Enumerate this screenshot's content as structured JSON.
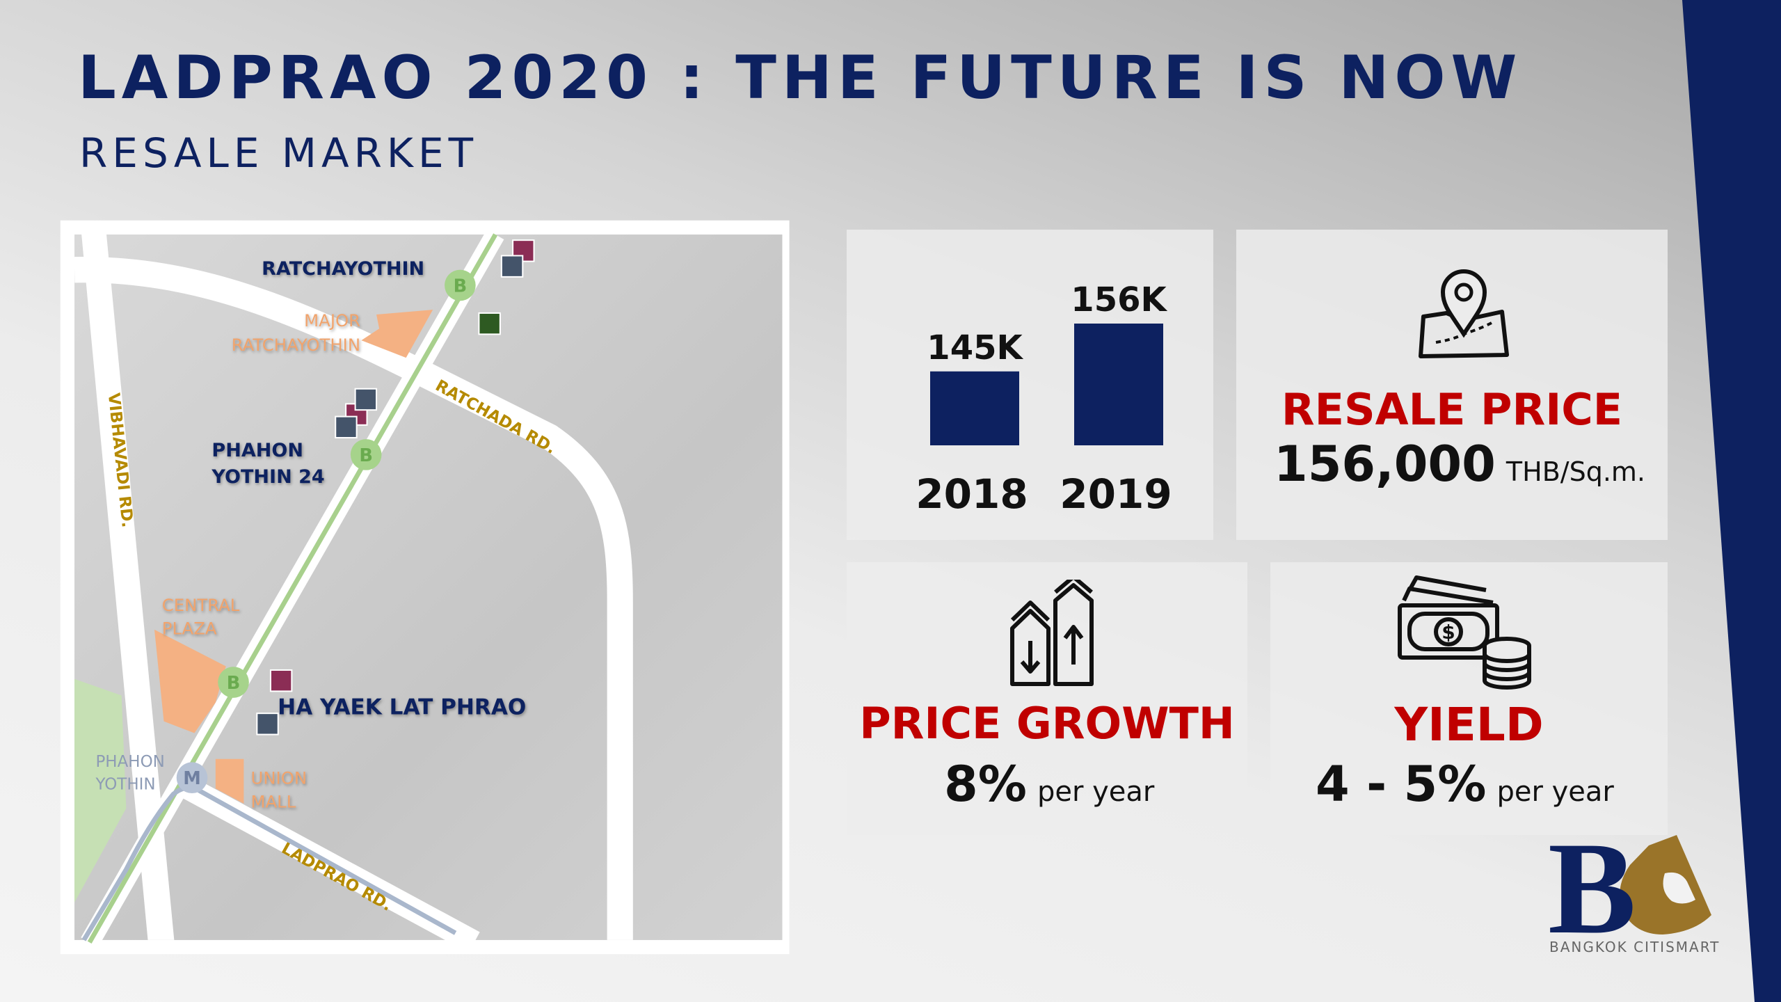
{
  "header": {
    "title": "LADPRAO 2020 : THE FUTURE IS NOW",
    "subtitle": "RESALE MARKET"
  },
  "map": {
    "stations": {
      "ratchayothin": "RATCHAYOTHIN",
      "phahon_yothin_24": [
        "PHAHON",
        "YOTHIN 24"
      ],
      "ha_yaek": "HA YAEK LAT PHRAO",
      "mrt_phahon_yothin": [
        "PHAHON",
        "YOTHIN"
      ]
    },
    "malls": {
      "major": [
        "MAJOR",
        "RATCHAYOTHIN"
      ],
      "central": [
        "CENTRAL",
        "PLAZA"
      ],
      "union": [
        "UNION",
        "MALL"
      ]
    },
    "roads": {
      "vibhavadi": "VIBHAVADI RD.",
      "ratchada": "RATCHADA RD.",
      "ladprao": "LADPRAO RD."
    },
    "bts_marker": "B",
    "mrt_marker": "M",
    "colors": {
      "bts_line": "#a8d08d",
      "mrt_line": "#a9b7cc",
      "mall": "#f4b183",
      "park": "#c6e0b4",
      "marker_magenta": "#8b2d55",
      "marker_slate": "#44546a",
      "marker_green": "#2e5a22"
    }
  },
  "chart_data": {
    "type": "bar",
    "categories": [
      "2018",
      "2019"
    ],
    "values": [
      145,
      156
    ],
    "data_labels": [
      "145K",
      "156K"
    ],
    "ylim": [
      128,
      160
    ],
    "color": "#0d2160"
  },
  "resale_price": {
    "icon": "map-pin-icon",
    "label": "RESALE PRICE",
    "value": "156,000",
    "unit": "THB/Sq.m."
  },
  "price_growth": {
    "icon": "growth-houses-icon",
    "label": "PRICE GROWTH",
    "value": "8%",
    "unit": "per year"
  },
  "yield": {
    "icon": "money-icon",
    "label": "YIELD",
    "value": "4 - 5%",
    "unit": "per year"
  },
  "logo": {
    "text": "BANGKOK CITISMART",
    "mark": "BC"
  },
  "colors": {
    "navy": "#0d2160",
    "red": "#c00000",
    "gold": "#9a7429"
  }
}
